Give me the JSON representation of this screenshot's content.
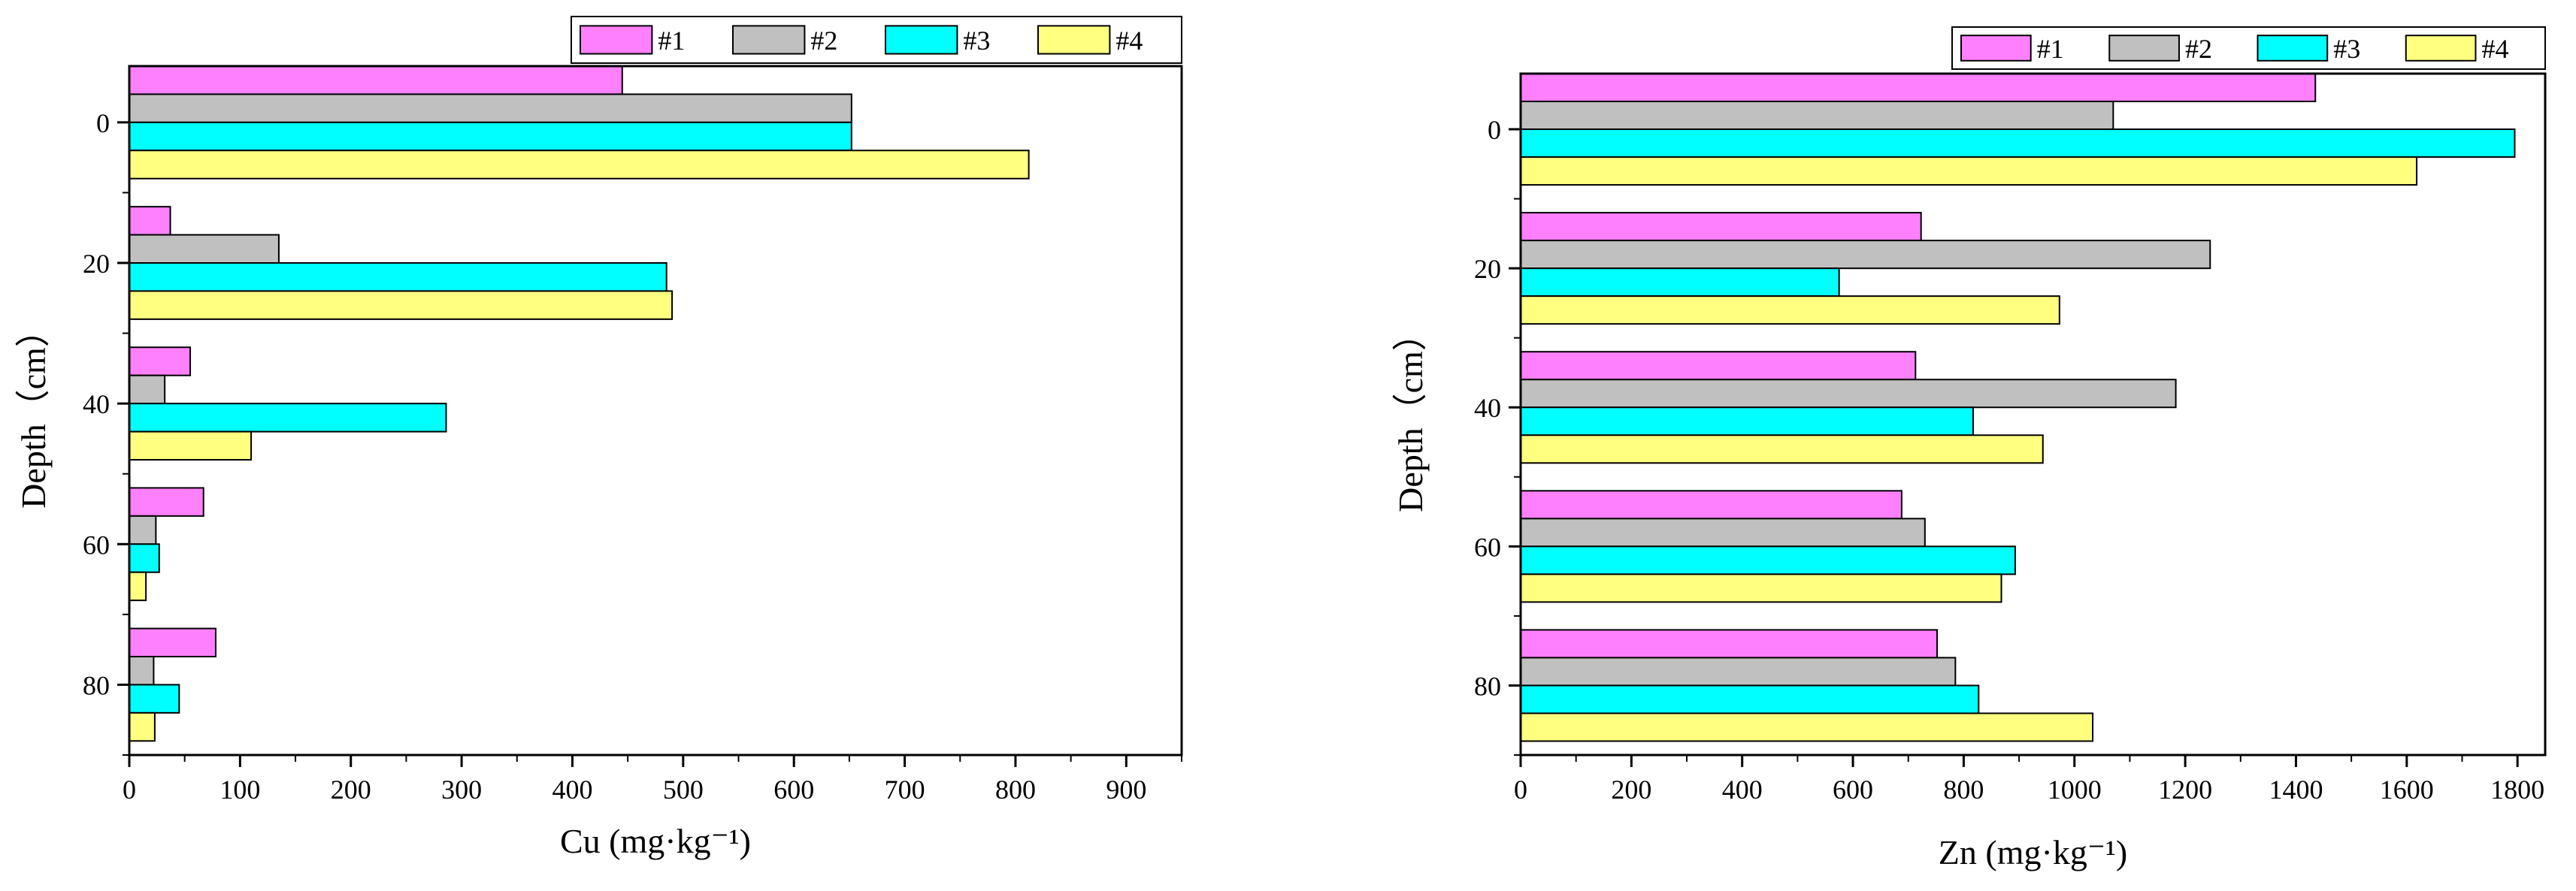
{
  "chart_data": [
    {
      "type": "bar",
      "orientation": "horizontal",
      "title": "",
      "xlabel": "Cu (mg·kg⁻¹)",
      "ylabel": "Depth（cm）",
      "xlim": [
        0,
        950
      ],
      "ylim": [
        -8,
        90
      ],
      "x_ticks": [
        0,
        100,
        200,
        300,
        400,
        500,
        600,
        700,
        800,
        900
      ],
      "y_ticks": [
        0,
        20,
        40,
        60,
        80
      ],
      "categories": [
        0,
        20,
        40,
        60,
        80
      ],
      "legend_position": "top-right",
      "series": [
        {
          "name": "#1",
          "color": "#ff80ff",
          "values": [
            445,
            37,
            55,
            67,
            78
          ]
        },
        {
          "name": "#2",
          "color": "#c0c0c0",
          "values": [
            652,
            135,
            32,
            24,
            22
          ]
        },
        {
          "name": "#3",
          "color": "#00ffff",
          "values": [
            652,
            485,
            286,
            27,
            45
          ]
        },
        {
          "name": "#4",
          "color": "#ffff80",
          "values": [
            812,
            490,
            110,
            15,
            23
          ]
        }
      ]
    },
    {
      "type": "bar",
      "orientation": "horizontal",
      "title": "",
      "xlabel": "Zn (mg·kg⁻¹)",
      "ylabel": "Depth（cm）",
      "xlim": [
        0,
        1850
      ],
      "ylim": [
        -8,
        90
      ],
      "x_ticks": [
        0,
        200,
        400,
        600,
        800,
        1000,
        1200,
        1400,
        1600,
        1800
      ],
      "y_ticks": [
        0,
        20,
        40,
        60,
        80
      ],
      "categories": [
        0,
        20,
        40,
        60,
        80
      ],
      "legend_position": "top-right",
      "series": [
        {
          "name": "#1",
          "color": "#ff80ff",
          "values": [
            1435,
            723,
            713,
            688,
            752
          ]
        },
        {
          "name": "#2",
          "color": "#c0c0c0",
          "values": [
            1070,
            1245,
            1183,
            730,
            785
          ]
        },
        {
          "name": "#3",
          "color": "#00ffff",
          "values": [
            1795,
            575,
            817,
            893,
            827
          ]
        },
        {
          "name": "#4",
          "color": "#ffff80",
          "values": [
            1618,
            973,
            943,
            868,
            1033
          ]
        }
      ]
    }
  ]
}
